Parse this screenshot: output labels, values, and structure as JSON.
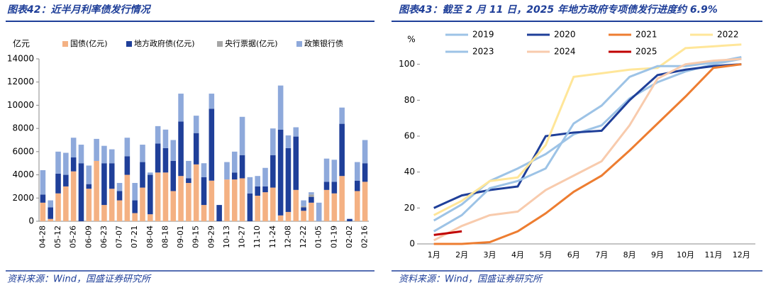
{
  "chart_data": [
    {
      "type": "bar",
      "stacked": true,
      "title": "图表42：近半月利率债发行情况",
      "y_label": "亿元",
      "source": "资料来源：Wind，国盛证券研究所",
      "categories": [
        "04-28",
        null,
        "05-12",
        null,
        "05-26",
        null,
        "06-09",
        null,
        "06-23",
        null,
        "07-07",
        null,
        "07-21",
        null,
        "08-04",
        null,
        "08-18",
        null,
        "09-01",
        null,
        "09-15",
        null,
        "09-29",
        null,
        "10-13",
        null,
        "10-27",
        null,
        "11-10",
        null,
        "11-24",
        null,
        "12-08",
        null,
        "12-22",
        null,
        "01-05",
        null,
        "01-19",
        null,
        "02-02",
        null,
        "02-16"
      ],
      "series": [
        {
          "name": "国债(亿元)",
          "color": "#f4b183",
          "values": [
            1600,
            200,
            2400,
            3000,
            4300,
            0,
            2800,
            5200,
            1400,
            2800,
            1800,
            4000,
            700,
            2900,
            600,
            4200,
            4200,
            2600,
            3900,
            3300,
            4900,
            1400,
            3500,
            0,
            3600,
            3600,
            3700,
            0,
            2200,
            2500,
            2900,
            500,
            800,
            2700,
            900,
            1600,
            0,
            2700,
            2400,
            3900,
            0,
            2600,
            3400
          ]
        },
        {
          "name": "地方政府债(亿元)",
          "color": "#1f3f99",
          "values": [
            700,
            1000,
            1700,
            1000,
            1200,
            5000,
            400,
            0,
            3600,
            2200,
            800,
            1600,
            1100,
            2200,
            3400,
            2500,
            2100,
            2600,
            4700,
            400,
            2700,
            2400,
            6200,
            1400,
            0,
            600,
            2000,
            2400,
            800,
            500,
            2800,
            7400,
            5500,
            4600,
            300,
            500,
            0,
            700,
            1000,
            4500,
            200,
            900,
            1600
          ]
        },
        {
          "name": "央行票据(亿元)",
          "color": "#a6a6a6",
          "values": [
            0,
            0,
            0,
            0,
            0,
            0,
            0,
            0,
            0,
            0,
            0,
            0,
            0,
            0,
            0,
            0,
            0,
            0,
            0,
            0,
            0,
            0,
            0,
            0,
            0,
            0,
            0,
            0,
            0,
            0,
            0,
            0,
            0,
            0,
            100,
            200,
            0,
            0,
            0,
            0,
            0,
            0,
            0
          ]
        },
        {
          "name": "政策银行债",
          "color": "#8ea9db",
          "values": [
            2100,
            600,
            1900,
            1900,
            1700,
            1600,
            1600,
            1900,
            1500,
            1200,
            700,
            1600,
            1500,
            1500,
            200,
            1500,
            1600,
            1800,
            2400,
            1500,
            1500,
            1200,
            1300,
            0,
            1500,
            1800,
            3300,
            1400,
            900,
            1600,
            2300,
            3800,
            1100,
            800,
            500,
            200,
            1600,
            2000,
            1900,
            1400,
            0,
            1600,
            2000
          ]
        }
      ],
      "ylim": [
        0,
        14000
      ],
      "yticks": [
        0,
        2000,
        4000,
        6000,
        8000,
        10000,
        12000,
        14000
      ]
    },
    {
      "type": "line",
      "title": "图表43：截至 2 月 11 日，2025 年地方政府专项债发行进度约 6.9%",
      "y_label": "%",
      "source": "资料来源：Wind，国盛证券研究所",
      "categories": [
        "1月",
        "2月",
        "3月",
        "4月",
        "5月",
        "6月",
        "7月",
        "8月",
        "9月",
        "10月",
        "11月",
        "12月"
      ],
      "series": [
        {
          "name": "2019",
          "color": "#9dc3e6",
          "values": [
            13,
            22,
            35,
            42,
            50,
            61,
            66,
            81,
            90,
            96,
            100,
            103
          ]
        },
        {
          "name": "2020",
          "color": "#1f3f99",
          "values": [
            20,
            27,
            30,
            32,
            60,
            62,
            63,
            80,
            94,
            97,
            99,
            100
          ]
        },
        {
          "name": "2021",
          "color": "#ed7d31",
          "values": [
            0,
            0,
            1,
            7,
            17,
            29,
            38,
            52,
            67,
            82,
            98,
            100
          ]
        },
        {
          "name": "2022",
          "color": "#ffe699",
          "values": [
            16,
            24,
            35,
            37,
            55,
            93,
            95,
            97,
            98,
            109,
            110,
            111
          ]
        },
        {
          "name": "2023",
          "color": "#9dc3e6",
          "values": [
            7,
            16,
            31,
            35,
            42,
            67,
            77,
            93,
            99,
            99,
            101,
            104
          ]
        },
        {
          "name": "2024",
          "color": "#f8cbad",
          "values": [
            2,
            10,
            16,
            18,
            30,
            38,
            46,
            66,
            92,
            100,
            102,
            103
          ]
        },
        {
          "name": "2025",
          "color": "#c00000",
          "values": [
            5,
            7,
            null,
            null,
            null,
            null,
            null,
            null,
            null,
            null,
            null,
            null
          ]
        }
      ],
      "ylim": [
        0,
        120
      ],
      "yticks": [
        0,
        20,
        40,
        60,
        80,
        100
      ]
    }
  ]
}
